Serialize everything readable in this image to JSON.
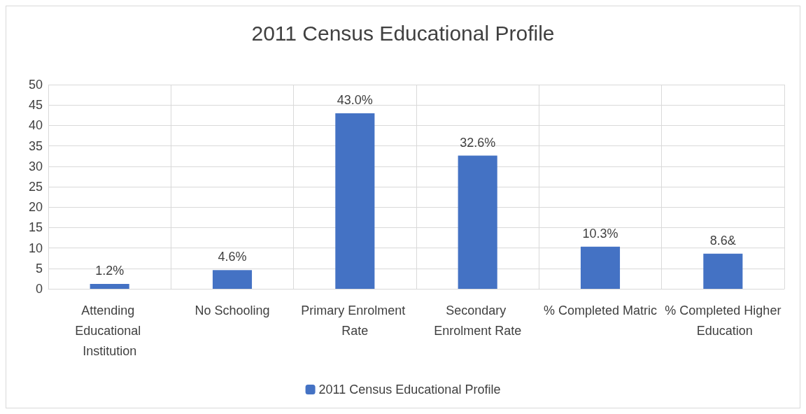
{
  "chart_data": {
    "type": "bar",
    "title": "2011 Census Educational Profile",
    "categories": [
      "Attending Educational Institution",
      "No Schooling",
      "Primary Enrolment Rate",
      "Secondary Enrolment Rate",
      "% Completed Matric",
      "% Completed Higher Education"
    ],
    "series": [
      {
        "name": "2011 Census Educational Profile",
        "color": "#4472c4",
        "values": [
          1.2,
          4.6,
          43.0,
          32.6,
          10.3,
          8.6
        ],
        "value_labels": [
          "1.2%",
          "4.6%",
          "43.0%",
          "32.6%",
          "10.3%",
          "8.6&"
        ]
      }
    ],
    "ylim": [
      0,
      50
    ],
    "yticks": [
      0,
      5,
      10,
      15,
      20,
      25,
      30,
      35,
      40,
      45,
      50
    ],
    "grid": true,
    "legend": "bottom"
  }
}
